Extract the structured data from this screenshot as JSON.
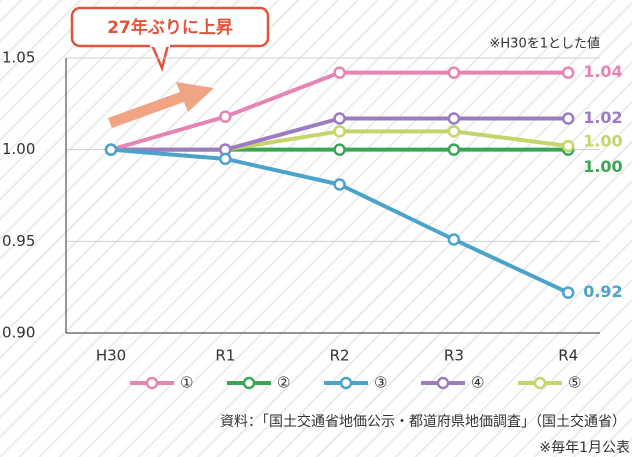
{
  "chart_data": {
    "type": "line",
    "title": "27年ぶりに上昇",
    "subtitle": "※H30を1とした値",
    "source": "資料：「国土交通省地価公示・都道府県地価調査」（国土交通省）",
    "note": "※毎年1月公表",
    "categories": [
      "H30",
      "R1",
      "R2",
      "R3",
      "R4"
    ],
    "series": [
      {
        "name": "①",
        "color": "#e684b4",
        "values": [
          1.0,
          1.018,
          1.042,
          1.042,
          1.042
        ],
        "value_labels": [
          null,
          null,
          null,
          null,
          "1.04"
        ]
      },
      {
        "name": "②",
        "color": "#3aa655",
        "values": [
          1.0,
          1.0,
          1.0,
          1.0,
          1.0
        ],
        "value_labels": [
          null,
          null,
          null,
          null,
          "1.00"
        ]
      },
      {
        "name": "③",
        "color": "#4aa3c8",
        "values": [
          1.0,
          0.995,
          0.981,
          0.951,
          0.922
        ],
        "value_labels": [
          null,
          null,
          null,
          null,
          "0.92"
        ]
      },
      {
        "name": "④",
        "color": "#9c7bbf",
        "values": [
          1.0,
          1.0,
          1.017,
          1.017,
          1.017
        ],
        "value_labels": [
          null,
          null,
          null,
          null,
          "1.02"
        ]
      },
      {
        "name": "⑤",
        "color": "#c5d56a",
        "values": [
          1.0,
          1.0,
          1.01,
          1.01,
          1.002
        ],
        "value_labels": [
          null,
          null,
          null,
          null,
          "1.00"
        ]
      }
    ],
    "ylim": [
      0.9,
      1.05
    ],
    "yticks": [
      {
        "value": 0.9,
        "label": "0.90"
      },
      0.95,
      {
        "value": 1.0,
        "label": "1.00"
      },
      1.05
    ],
    "grid": true
  }
}
